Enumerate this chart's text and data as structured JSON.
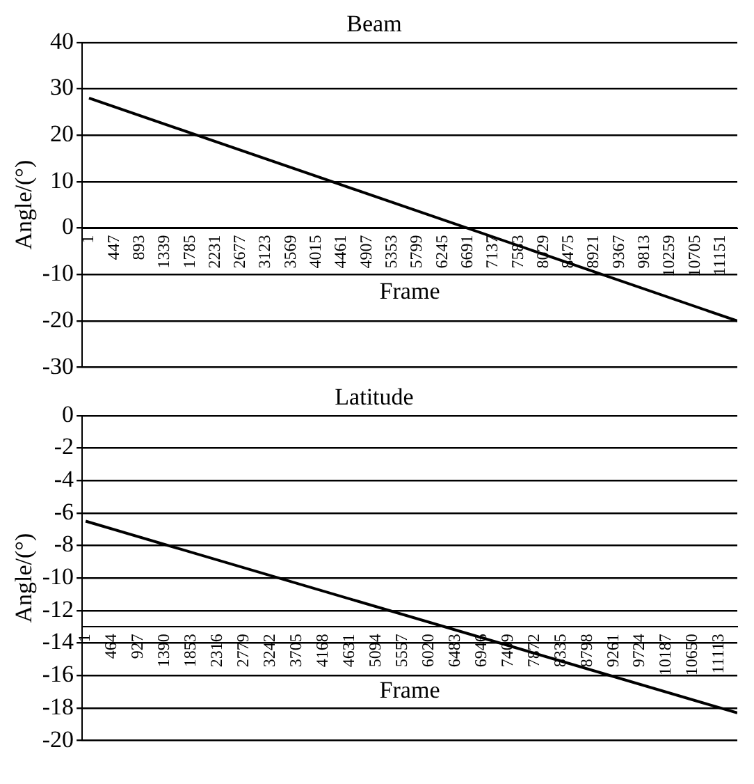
{
  "chart_data": [
    {
      "type": "line",
      "title": "Beam",
      "xlabel": "Frame",
      "ylabel": "Angle/(°)",
      "xlim": [
        -120,
        11450
      ],
      "ylim": [
        -30,
        40
      ],
      "xticks": [
        1,
        447,
        893,
        1339,
        1785,
        2231,
        2677,
        3123,
        3569,
        4015,
        4461,
        4907,
        5353,
        5799,
        6245,
        6691,
        7137,
        7583,
        8029,
        8475,
        8921,
        9367,
        9813,
        10259,
        10705,
        11151
      ],
      "yticks": [
        -30,
        -20,
        -10,
        0,
        10,
        20,
        30,
        40
      ],
      "grid": "y",
      "legend": false,
      "marker": "none",
      "line_style": "solid",
      "series": [
        {
          "color": "#000000",
          "x": [
            1,
            11450
          ],
          "values": [
            28,
            -20
          ]
        }
      ]
    },
    {
      "type": "line",
      "title": "Latitude",
      "xlabel": "Frame",
      "ylabel": "Angle/(°)",
      "xlim": [
        -60,
        11430
      ],
      "ylim": [
        -20,
        0
      ],
      "xticks": [
        1,
        464,
        927,
        1390,
        1853,
        2316,
        2779,
        3242,
        3705,
        4168,
        4631,
        5094,
        5557,
        6020,
        6483,
        6946,
        7409,
        7872,
        8335,
        8798,
        9261,
        9724,
        10187,
        10650,
        11113
      ],
      "yticks": [
        -20,
        -18,
        -16,
        -14,
        -12,
        -10,
        -8,
        -6,
        -4,
        -2,
        0
      ],
      "grid": "y",
      "legend": false,
      "marker": "none",
      "line_style": "solid",
      "series": [
        {
          "color": "#000000",
          "x": [
            1,
            11430
          ],
          "values": [
            -6.5,
            -18.3
          ]
        }
      ]
    }
  ]
}
